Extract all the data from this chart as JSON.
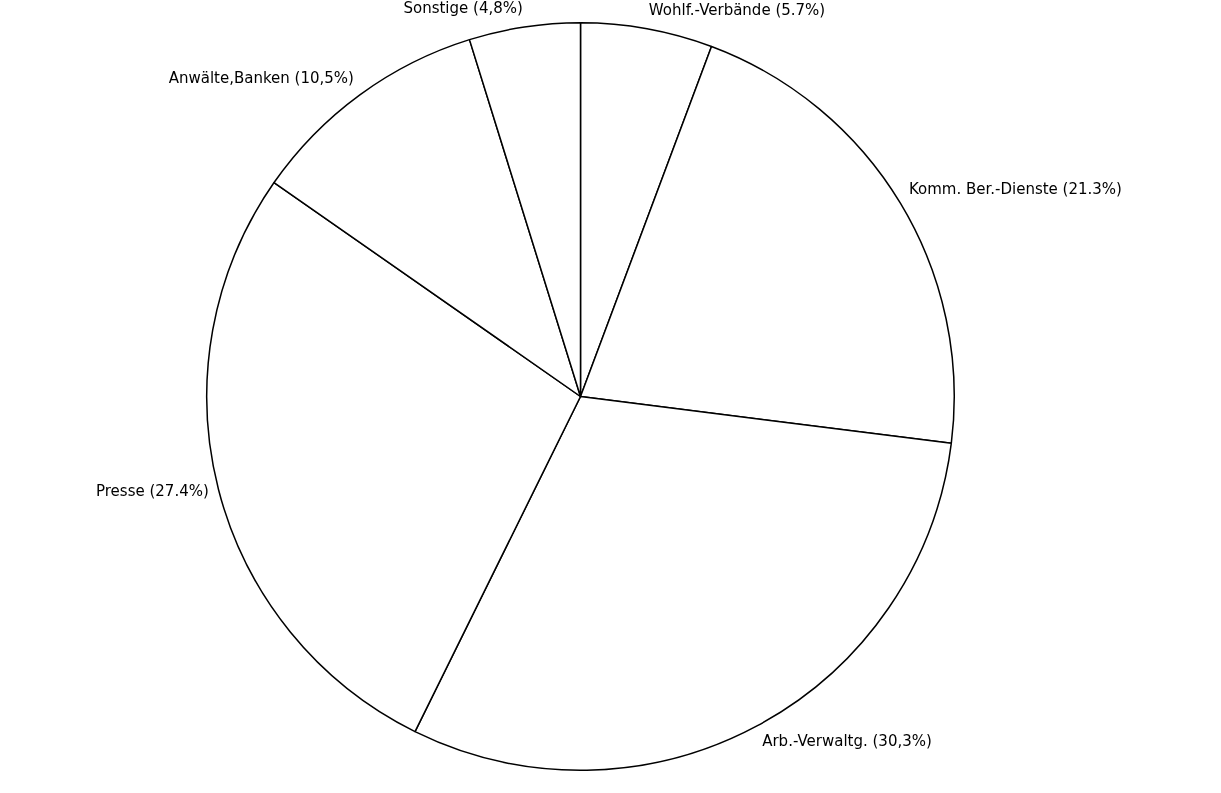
{
  "chart_data": {
    "type": "pie",
    "categories": [
      "Wohlf.-Verbände",
      "Komm. Ber.-Dienste",
      "Arb.-Verwaltg.",
      "Presse",
      "Anwälte,Banken",
      "Sonstige"
    ],
    "values": [
      5.7,
      21.3,
      30.3,
      27.4,
      10.5,
      4.8
    ],
    "value_labels": [
      "(5.7%)",
      "(21.3%)",
      "(30,3%)",
      "(27.4%)",
      "(10,5%)",
      "(4,8%)"
    ],
    "colors": [
      "#ffffff",
      "#ffffff",
      "#ffffff",
      "#ffffff",
      "#ffffff",
      "#ffffff"
    ],
    "legend": false
  }
}
